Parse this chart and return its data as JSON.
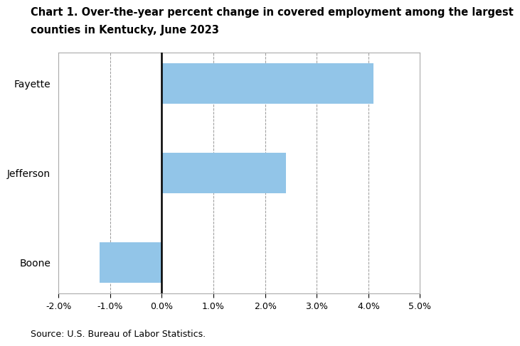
{
  "categories": [
    "Fayette",
    "Jefferson",
    "Boone"
  ],
  "values": [
    4.1,
    2.4,
    -1.2
  ],
  "bar_color": "#92C5E8",
  "title_line1": "Chart 1. Over-the-year percent change in covered employment among the largest",
  "title_line2": "counties in Kentucky, June 2023",
  "xlim": [
    -0.02,
    0.05
  ],
  "xticks": [
    -0.02,
    -0.01,
    0.0,
    0.01,
    0.02,
    0.03,
    0.04,
    0.05
  ],
  "xtick_labels": [
    "-2.0%",
    "-1.0%",
    "0.0%",
    "1.0%",
    "2.0%",
    "3.0%",
    "4.0%",
    "5.0%"
  ],
  "source": "Source: U.S. Bureau of Labor Statistics.",
  "title_fontsize": 10.5,
  "tick_fontsize": 9,
  "ylabel_fontsize": 10,
  "source_fontsize": 9,
  "bar_height": 0.45,
  "background_color": "#ffffff"
}
